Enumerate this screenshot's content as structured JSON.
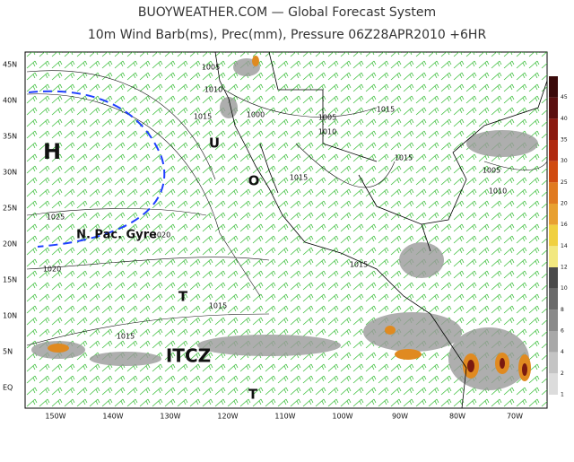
{
  "header": {
    "title": "BUOYWEATHER.COM — Global Forecast System",
    "subtitle": "10m Wind Barb(ms), Prec(mm), Pressure 06Z28APR2010 +6HR"
  },
  "map": {
    "lat_labels": [
      "45N",
      "40N",
      "35N",
      "30N",
      "25N",
      "20N",
      "15N",
      "10N",
      "5N",
      "EQ"
    ],
    "lon_labels": [
      "150W",
      "140W",
      "130W",
      "120W",
      "110W",
      "100W",
      "90W",
      "80W",
      "70W"
    ],
    "isobar_labels": [
      "1005",
      "1010",
      "1015",
      "1000",
      "1005",
      "1015",
      "1010",
      "1015",
      "1015",
      "1005",
      "1010",
      "1025",
      "1020",
      "1020",
      "1015",
      "1015",
      "1015"
    ],
    "annotations": [
      "H",
      "U",
      "O",
      "T",
      "ITCZ",
      "T",
      "N. Pac. Gyre"
    ]
  },
  "colorbar": {
    "ticks": [
      45,
      40,
      35,
      30,
      25,
      20,
      16,
      14,
      12,
      10,
      8,
      6,
      4,
      2,
      1
    ],
    "colors": [
      "#3a0a0a",
      "#5a1010",
      "#8a1a10",
      "#b02a10",
      "#d04a10",
      "#e07a20",
      "#e8a030",
      "#f0d040",
      "#f2e880",
      "#4a4a4a",
      "#6a6a6a",
      "#8a8a8a",
      "#a8a8a8",
      "#c4c4c4",
      "#dcdcdc"
    ]
  }
}
